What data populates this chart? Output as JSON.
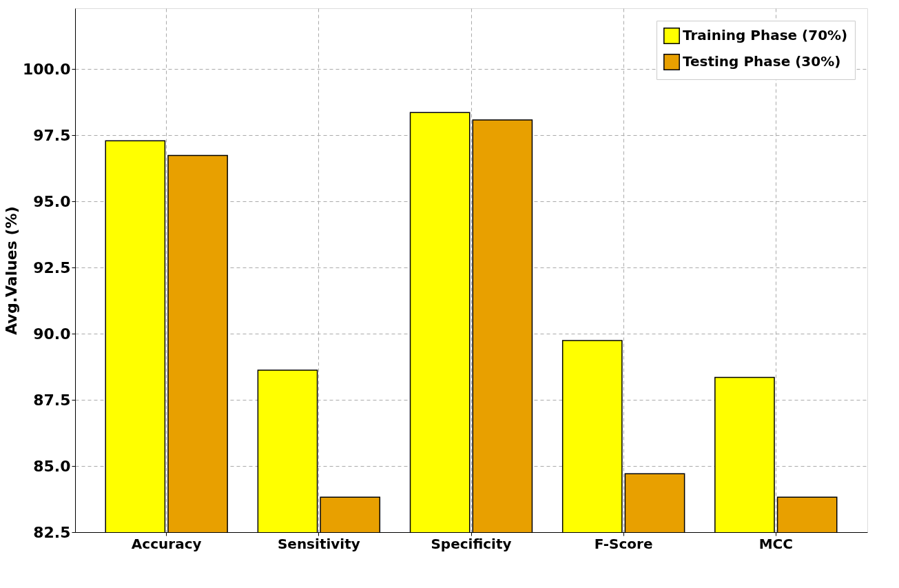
{
  "chart_data": {
    "type": "bar",
    "ylabel": "Avg.Values (%)",
    "categories": [
      "Accuracy",
      "Sensitivity",
      "Specificity",
      "F-Score",
      "MCC"
    ],
    "series": [
      {
        "name": "Training Phase (70%)",
        "color": "#ffff00",
        "values": [
          97.29,
          88.62,
          98.36,
          89.74,
          88.35
        ]
      },
      {
        "name": "Testing Phase (30%)",
        "color": "#e8a000",
        "values": [
          96.74,
          83.82,
          98.08,
          84.71,
          83.82
        ]
      }
    ],
    "ylim": [
      82.5,
      102.3
    ],
    "yticks": [
      82.5,
      {
        "value": 85,
        "label": "85.0"
      },
      87.5,
      {
        "value": 90,
        "label": "90.0"
      },
      92.5,
      {
        "value": 95,
        "label": "95.0"
      },
      97.5,
      {
        "value": 100,
        "label": "100.0"
      }
    ],
    "grid": true,
    "legend": "top right"
  }
}
